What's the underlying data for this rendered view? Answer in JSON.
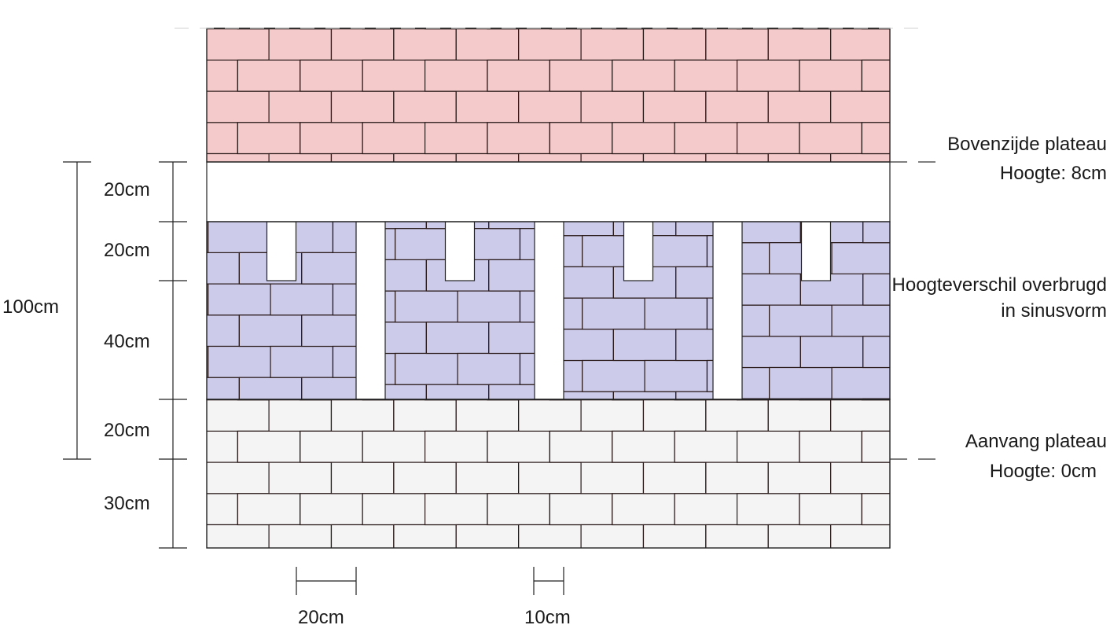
{
  "diagram": {
    "colors": {
      "top_plateau": "#f4caca",
      "transition": "#ccccea",
      "start_plateau": "#f4f4f4",
      "outline": "#2a1a1a"
    },
    "top_plateau": {
      "line1": "Bovenzijde plateau",
      "line2": "Hoogte: 8cm"
    },
    "transition": {
      "line1": "Hoogteverschil overbrugd",
      "line2": "in sinusvorm"
    },
    "start_plateau": {
      "line1": "Aanvang plateau",
      "line2": "Hoogte: 0cm"
    },
    "dimensions": {
      "total": "100cm",
      "segments": [
        "20cm",
        "20cm",
        "40cm",
        "20cm",
        "30cm"
      ],
      "brick_length": "20cm",
      "gap_width": "10cm"
    }
  }
}
